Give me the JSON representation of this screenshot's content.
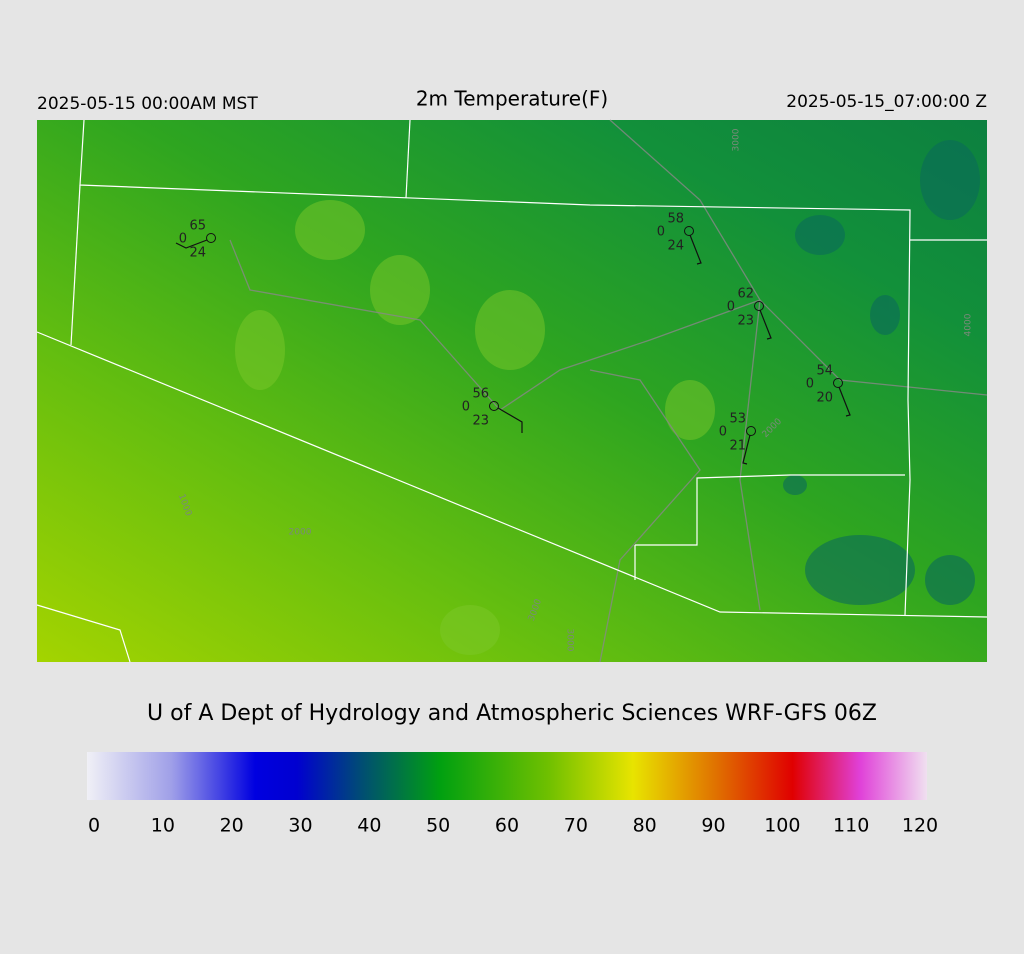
{
  "header": {
    "left": "2025-05-15 00:00AM MST",
    "title": "2m Temperature(F)",
    "right": "2025-05-15_07:00:00 Z"
  },
  "stations": [
    {
      "temp": "65",
      "pressure": "0",
      "dew": "24"
    },
    {
      "temp": "58",
      "pressure": "0",
      "dew": "24"
    },
    {
      "temp": "62",
      "pressure": "0",
      "dew": "23"
    },
    {
      "temp": "54",
      "pressure": "0",
      "dew": "20"
    },
    {
      "temp": "56",
      "pressure": "0",
      "dew": "23"
    },
    {
      "temp": "53",
      "pressure": "0",
      "dew": "21"
    }
  ],
  "contour_labels": [
    "1000",
    "2000",
    "3000",
    "3000",
    "4000",
    "2000",
    "3000"
  ],
  "credit": "U of A Dept of Hydrology and Atmospheric Sciences WRF-GFS 06Z",
  "colorbar": {
    "ticks": [
      0,
      10,
      20,
      30,
      40,
      50,
      60,
      70,
      80,
      90,
      100,
      110,
      120
    ]
  }
}
